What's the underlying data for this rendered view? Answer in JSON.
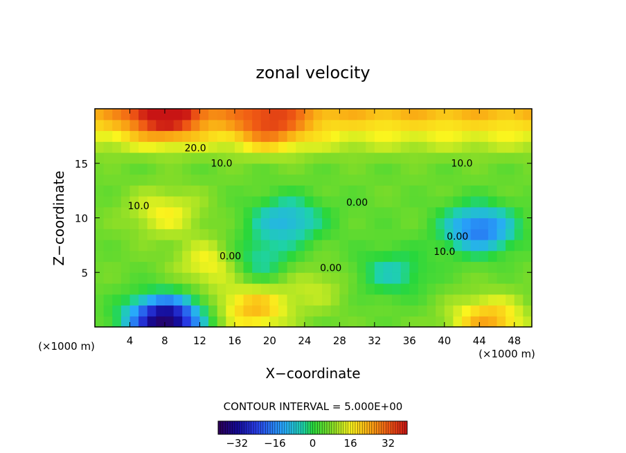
{
  "chart_data": {
    "type": "heatmap",
    "title": "zonal velocity",
    "xlabel": "X−coordinate",
    "ylabel": "Z−coordinate",
    "x_unit_left": "(×1000 m)",
    "x_unit_right": "(×1000 m)",
    "x_ticks": [
      "4",
      "8",
      "12",
      "16",
      "20",
      "24",
      "28",
      "32",
      "36",
      "40",
      "44",
      "48"
    ],
    "x_tick_values": [
      4,
      8,
      12,
      16,
      20,
      24,
      28,
      32,
      36,
      40,
      44,
      48
    ],
    "y_ticks": [
      "5",
      "10",
      "15"
    ],
    "y_tick_values": [
      5,
      10,
      15
    ],
    "xlim": [
      0,
      50
    ],
    "ylim": [
      0,
      20
    ],
    "contour_interval_text": "CONTOUR INTERVAL = 5.000E+00",
    "colorbar": {
      "range": [
        -40,
        40
      ],
      "ticks": [
        "−32",
        "−16",
        "0",
        "16",
        "32"
      ],
      "tick_values": [
        -32,
        -16,
        0,
        16,
        32
      ]
    },
    "contour_labels": [
      {
        "text": "20.0",
        "x": 11.5,
        "z": 16.1
      },
      {
        "text": "10.0",
        "x": 14.5,
        "z": 14.7
      },
      {
        "text": "10.0",
        "x": 42.0,
        "z": 14.7
      },
      {
        "text": "10.0",
        "x": 5.0,
        "z": 10.8
      },
      {
        "text": "0.00",
        "x": 30.0,
        "z": 11.1
      },
      {
        "text": "0.00",
        "x": 27.0,
        "z": 5.1
      },
      {
        "text": "0.00",
        "x": 15.5,
        "z": 6.2
      },
      {
        "text": "10.0",
        "x": 40.0,
        "z": 6.6
      },
      {
        "text": "0.00",
        "x": 41.5,
        "z": 8.0
      }
    ],
    "field_features": [
      {
        "x": 8,
        "z": 0.6,
        "value": -38
      },
      {
        "x": 18,
        "z": 6.0,
        "value": -8
      },
      {
        "x": 22,
        "z": 9.8,
        "value": -10
      },
      {
        "x": 44,
        "z": 9.0,
        "value": -18
      },
      {
        "x": 34,
        "z": 5.0,
        "value": -5
      },
      {
        "x": 31,
        "z": 10.2,
        "value": 5
      },
      {
        "x": 8,
        "z": 10.5,
        "value": 16
      },
      {
        "x": 14,
        "z": 5.8,
        "value": 20
      },
      {
        "x": 18,
        "z": 1.7,
        "value": 22
      },
      {
        "x": 45,
        "z": 0.5,
        "value": 24
      },
      {
        "x": 25,
        "z": 3.7,
        "value": 12
      },
      {
        "x": 8,
        "z": 19.5,
        "value": 30
      },
      {
        "x": 20,
        "z": 18.5,
        "value": 22
      }
    ]
  }
}
